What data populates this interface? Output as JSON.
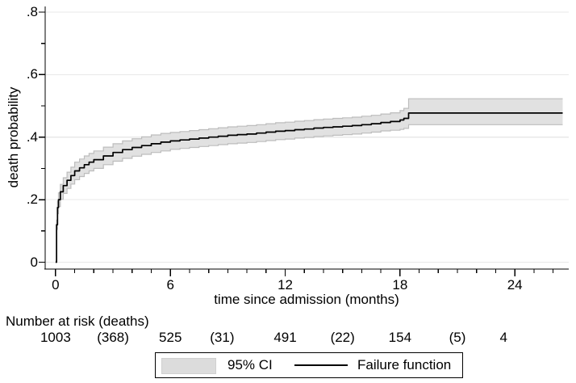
{
  "colors": {
    "background": "#ffffff",
    "curve": "#000000",
    "band_fill": "#e1e1e1",
    "band_edge": "#bdbdbd",
    "gridline": "#e8e8e8",
    "axis": "#000000",
    "legend_swatch": "#dcdcdc"
  },
  "chart_data": {
    "type": "line",
    "subtype": "step-failure-function-with-ci-band",
    "title": "",
    "xlabel": "time since admission (months)",
    "ylabel": "death probability",
    "xlim": [
      -0.55,
      26.85
    ],
    "ylim": [
      0,
      0.82
    ],
    "grid": "horizontal-major",
    "xticks": {
      "major": [
        0,
        6,
        12,
        18,
        24
      ],
      "labels": [
        "0",
        "6",
        "12",
        "18",
        "24"
      ],
      "minor_every_months": 1,
      "minor_max": 26
    },
    "yticks": {
      "major": [
        0,
        0.2,
        0.4,
        0.6,
        0.8
      ],
      "labels": [
        "0",
        ".2",
        ".4",
        ".6",
        ".8"
      ],
      "minor": [
        0.1,
        0.3,
        0.5,
        0.7
      ]
    },
    "legend": {
      "position": "bottom-center",
      "entries": [
        {
          "label": "95% CI",
          "type": "area",
          "color": "#dcdcdc"
        },
        {
          "label": "Failure function",
          "type": "line",
          "color": "#000000"
        }
      ]
    },
    "series_note": "points are [t_months, ci_lower, failure_estimate, ci_upper]",
    "points": [
      [
        0.0,
        0.0,
        0.0,
        0.004
      ],
      [
        0.05,
        0.105,
        0.12,
        0.135
      ],
      [
        0.1,
        0.155,
        0.175,
        0.195
      ],
      [
        0.15,
        0.178,
        0.2,
        0.222
      ],
      [
        0.25,
        0.201,
        0.225,
        0.249
      ],
      [
        0.4,
        0.22,
        0.245,
        0.27
      ],
      [
        0.6,
        0.236,
        0.262,
        0.288
      ],
      [
        0.8,
        0.25,
        0.277,
        0.304
      ],
      [
        1.0,
        0.264,
        0.292,
        0.32
      ],
      [
        1.25,
        0.274,
        0.302,
        0.33
      ],
      [
        1.5,
        0.284,
        0.312,
        0.34
      ],
      [
        1.75,
        0.292,
        0.32,
        0.348
      ],
      [
        2.0,
        0.3,
        0.328,
        0.356
      ],
      [
        2.5,
        0.312,
        0.34,
        0.368
      ],
      [
        3.0,
        0.323,
        0.351,
        0.379
      ],
      [
        3.5,
        0.332,
        0.36,
        0.388
      ],
      [
        4.0,
        0.339,
        0.367,
        0.395
      ],
      [
        4.5,
        0.345,
        0.373,
        0.401
      ],
      [
        5.0,
        0.351,
        0.379,
        0.407
      ],
      [
        5.5,
        0.356,
        0.384,
        0.412
      ],
      [
        6.0,
        0.361,
        0.388,
        0.415
      ],
      [
        6.5,
        0.364,
        0.391,
        0.418
      ],
      [
        7.0,
        0.367,
        0.394,
        0.421
      ],
      [
        7.5,
        0.37,
        0.397,
        0.424
      ],
      [
        8.0,
        0.373,
        0.4,
        0.427
      ],
      [
        8.5,
        0.376,
        0.403,
        0.43
      ],
      [
        9.0,
        0.379,
        0.406,
        0.433
      ],
      [
        9.5,
        0.381,
        0.408,
        0.435
      ],
      [
        10.0,
        0.383,
        0.41,
        0.437
      ],
      [
        10.5,
        0.386,
        0.413,
        0.44
      ],
      [
        11.0,
        0.389,
        0.416,
        0.443
      ],
      [
        11.5,
        0.392,
        0.419,
        0.446
      ],
      [
        12.0,
        0.394,
        0.421,
        0.448
      ],
      [
        12.5,
        0.397,
        0.424,
        0.451
      ],
      [
        13.0,
        0.399,
        0.426,
        0.453
      ],
      [
        13.5,
        0.402,
        0.429,
        0.456
      ],
      [
        14.0,
        0.404,
        0.431,
        0.458
      ],
      [
        14.5,
        0.406,
        0.433,
        0.46
      ],
      [
        15.0,
        0.408,
        0.435,
        0.462
      ],
      [
        15.5,
        0.41,
        0.437,
        0.464
      ],
      [
        16.0,
        0.413,
        0.44,
        0.467
      ],
      [
        16.5,
        0.416,
        0.443,
        0.47
      ],
      [
        17.0,
        0.42,
        0.447,
        0.474
      ],
      [
        17.5,
        0.422,
        0.45,
        0.478
      ],
      [
        18.0,
        0.425,
        0.455,
        0.485
      ],
      [
        18.2,
        0.428,
        0.46,
        0.492
      ],
      [
        18.45,
        0.44,
        0.477,
        0.523
      ],
      [
        26.5,
        0.44,
        0.477,
        0.523
      ]
    ],
    "risk_table": {
      "label": "Number at risk (deaths)",
      "entries": [
        {
          "text": "1003",
          "t": 0,
          "kind": "at-risk"
        },
        {
          "text": "(368)",
          "t": 3,
          "kind": "deaths"
        },
        {
          "text": "525",
          "t": 6,
          "kind": "at-risk"
        },
        {
          "text": "(31)",
          "t": 9,
          "kind": "deaths"
        },
        {
          "text": "491",
          "t": 12,
          "kind": "at-risk"
        },
        {
          "text": "(22)",
          "t": 15,
          "kind": "deaths"
        },
        {
          "text": "154",
          "t": 18,
          "kind": "at-risk"
        },
        {
          "text": "(5)",
          "t": 21,
          "kind": "deaths"
        },
        {
          "text": "4",
          "t": 24,
          "kind": "at-risk"
        }
      ]
    }
  }
}
